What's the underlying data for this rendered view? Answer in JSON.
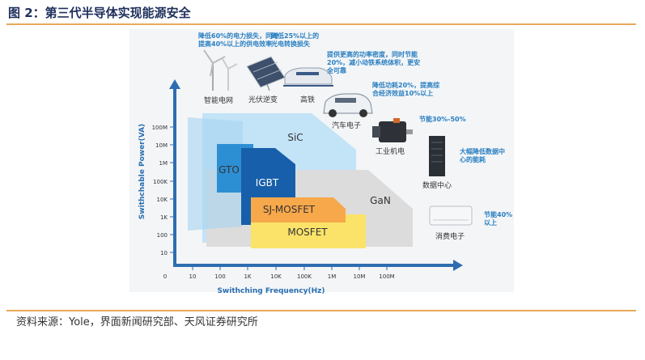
{
  "figure": {
    "title": "图 2：第三代半导体实现能源安全",
    "source": "资料来源：Yole，界面新闻研究部、天风证券研究所"
  },
  "diagram": {
    "y_axis_label": "Swithchable Power(VA)",
    "x_axis_label": "Swithching Frequency(Hz)",
    "y_ticks": [
      "100M",
      "10M",
      "1M",
      "100K",
      "10K",
      "1K",
      "100",
      "10"
    ],
    "x_ticks": [
      "0",
      "10",
      "100",
      "1K",
      "10K",
      "100K",
      "1M",
      "10M",
      "100M"
    ],
    "regions": {
      "sic": "SiC",
      "gan": "GaN",
      "gto": "GTO",
      "igbt": "IGBT",
      "sj_mosfet": "SJ-MOSFET",
      "mosfet": "MOSFET"
    },
    "colors": {
      "sic": "#c3e3f7",
      "gan": "#dcdcdc",
      "gto": "#2d8fd3",
      "igbt": "#175fab",
      "sj_mosfet": "#f7a84b",
      "mosfet": "#fbe36a",
      "axis": "#2e6db0",
      "accent": "#2a7fc1",
      "rule": "#e8a85a"
    },
    "applications": {
      "smart_grid": "智能电网",
      "pv_inverter": "光伏逆变",
      "high_speed_rail": "高铁",
      "ev": "汽车电子",
      "industrial_motor": "工业机电",
      "data_center": "数据中心",
      "consumer": "消费电子"
    },
    "annotations": {
      "smart_grid": [
        "降低60%的电力损失，同时",
        "提高40%以上的供电效率"
      ],
      "pv_inverter": [
        "降低25%以上的",
        "光电转换损失"
      ],
      "high_speed_rail": [
        "提供更高的功率密度，同时节能",
        "20%，减小动铁系统体积，更安",
        "全可靠"
      ],
      "ev": [
        "降低功耗20%，提高综",
        "合经济效益10%以上"
      ],
      "industrial_motor": [
        "节能30%-50%"
      ],
      "data_center": [
        "大幅降低数据中",
        "心的能耗"
      ],
      "consumer": [
        "节能40%",
        "以上"
      ]
    }
  }
}
